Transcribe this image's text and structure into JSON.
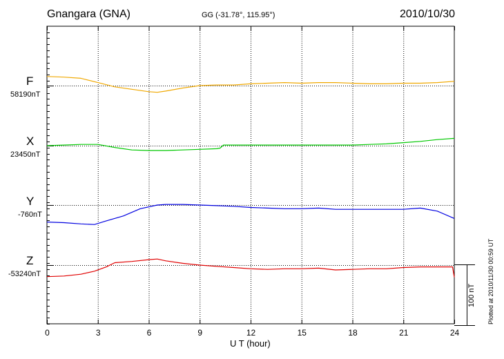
{
  "header": {
    "station": "Gnangara (GNA)",
    "coords": "GG (-31.78°, 115.95°)",
    "date": "2010/10/30"
  },
  "footer": {
    "xlabel": "U T (hour)",
    "plotted": "Plotted at 2010/11/30 00:59 UT",
    "scale_label": "100 nT"
  },
  "colors": {
    "F": "#f0a800",
    "X": "#00c800",
    "Y": "#0000e0",
    "Z": "#e00000"
  },
  "chart_data": {
    "type": "line",
    "title": "Gnangara (GNA)",
    "xlabel": "U T (hour)",
    "xlim": [
      0,
      24
    ],
    "x_ticks": [
      0,
      3,
      6,
      9,
      12,
      15,
      18,
      21,
      24
    ],
    "x_tick_labels": [
      "0",
      "3",
      "6",
      "9",
      "12",
      "15",
      "18",
      "21",
      "24"
    ],
    "grid": true,
    "scale_bar_nT": 100,
    "series": [
      {
        "name": "F",
        "baseline_label": "58190nT",
        "unit": "nT",
        "x": [
          0,
          1,
          2,
          3,
          4,
          5,
          6,
          6.5,
          7,
          8,
          9,
          10,
          11,
          12,
          13,
          14,
          15,
          16,
          17,
          18,
          19,
          20,
          21,
          22,
          23,
          24
        ],
        "values": [
          58205,
          58204,
          58202,
          58195,
          58188,
          58184,
          58180,
          58179,
          58181,
          58186,
          58190,
          58191,
          58191,
          58193,
          58194,
          58195,
          58194,
          58195,
          58195,
          58194,
          58193,
          58193,
          58194,
          58194,
          58195,
          58197
        ]
      },
      {
        "name": "X",
        "baseline_label": "23450nT",
        "unit": "nT",
        "x": [
          0,
          1,
          2,
          3,
          4,
          5,
          6,
          7,
          8,
          9,
          10,
          10.2,
          10.4,
          11,
          12,
          13,
          14,
          15,
          16,
          17,
          18,
          19,
          20,
          21,
          22,
          23,
          24
        ],
        "values": [
          23450,
          23451,
          23452,
          23452,
          23447,
          23443,
          23442,
          23442,
          23443,
          23444,
          23445,
          23446,
          23451,
          23451,
          23451,
          23451,
          23451,
          23451,
          23451,
          23451,
          23451,
          23452,
          23453,
          23455,
          23457,
          23460,
          23462
        ]
      },
      {
        "name": "Y",
        "baseline_label": "-760nT",
        "unit": "nT",
        "x": [
          0,
          1,
          2,
          2.8,
          3.5,
          4.5,
          5.5,
          6.5,
          7,
          8,
          9,
          10,
          11,
          12,
          13,
          14,
          15,
          16,
          17,
          18,
          19,
          20,
          21,
          22,
          23,
          24
        ],
        "values": [
          -788,
          -789,
          -791,
          -792,
          -786,
          -778,
          -766,
          -760,
          -759,
          -759,
          -760,
          -761,
          -762,
          -764,
          -765,
          -766,
          -766,
          -765,
          -767,
          -767,
          -767,
          -767,
          -767,
          -765,
          -770,
          -782
        ]
      },
      {
        "name": "Z",
        "baseline_label": "-53240nT",
        "unit": "nT",
        "x": [
          0,
          1,
          2,
          2.8,
          3.5,
          4,
          5,
          6,
          6.5,
          7,
          8,
          9,
          10,
          11,
          12,
          13,
          14,
          15,
          16,
          17,
          18,
          19,
          20,
          21,
          22,
          23,
          23.9,
          24
        ],
        "values": [
          -53259,
          -53258,
          -53255,
          -53250,
          -53243,
          -53236,
          -53234,
          -53231,
          -53230,
          -53233,
          -53237,
          -53240,
          -53242,
          -53244,
          -53246,
          -53247,
          -53246,
          -53246,
          -53245,
          -53248,
          -53247,
          -53246,
          -53246,
          -53244,
          -53243,
          -53243,
          -53243,
          -53260
        ]
      }
    ]
  }
}
